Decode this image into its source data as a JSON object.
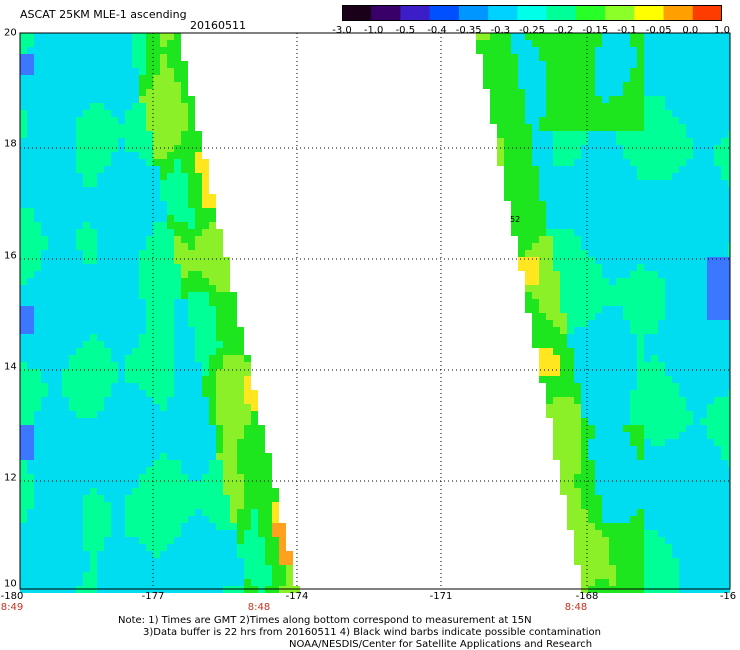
{
  "header": {
    "title": "ASCAT 25KM MLE-1 ascending",
    "date": "20160511"
  },
  "colorbar": {
    "ticks": [
      "-3.0",
      "-1.0",
      "-0.5",
      "-0.4",
      "-0.35",
      "-0.3",
      "-0.25",
      "-0.2",
      "-0.15",
      "-0.1",
      "-0.05",
      "0.0",
      "1.0"
    ],
    "colors": [
      "#1a0018",
      "#3a006a",
      "#3c1ec8",
      "#0050ff",
      "#0096ff",
      "#00d2ff",
      "#00ffe8",
      "#00ff96",
      "#28ff28",
      "#8cff28",
      "#ffff00",
      "#ffa000",
      "#ff3c00"
    ]
  },
  "map": {
    "y_ticks": [
      "20",
      "18",
      "16",
      "14",
      "12",
      "10"
    ],
    "x_ticks": [
      "-180",
      "-177",
      "-174",
      "-171",
      "-168",
      "-16"
    ],
    "pass_times": [
      "8:49",
      "8:48",
      "8:48"
    ],
    "marker_label": "52",
    "field_colors": {
      "low": "#00dcf0",
      "mid": "#00ff96",
      "green": "#1ee61e",
      "lime": "#8cf028",
      "yellow": "#ffe61e",
      "orange": "#ffa01e",
      "blue": "#3c78ff"
    }
  },
  "notes": {
    "line1": "Note: 1) Times are GMT 2)Times along bottom correspond to measurement at 15N",
    "line2": "3)Data buffer is 22 hrs from 20160511 4) Black wind barbs indicate possible contamination",
    "line3": "NOAA/NESDIS/Center for Satellite Applications and Research"
  }
}
